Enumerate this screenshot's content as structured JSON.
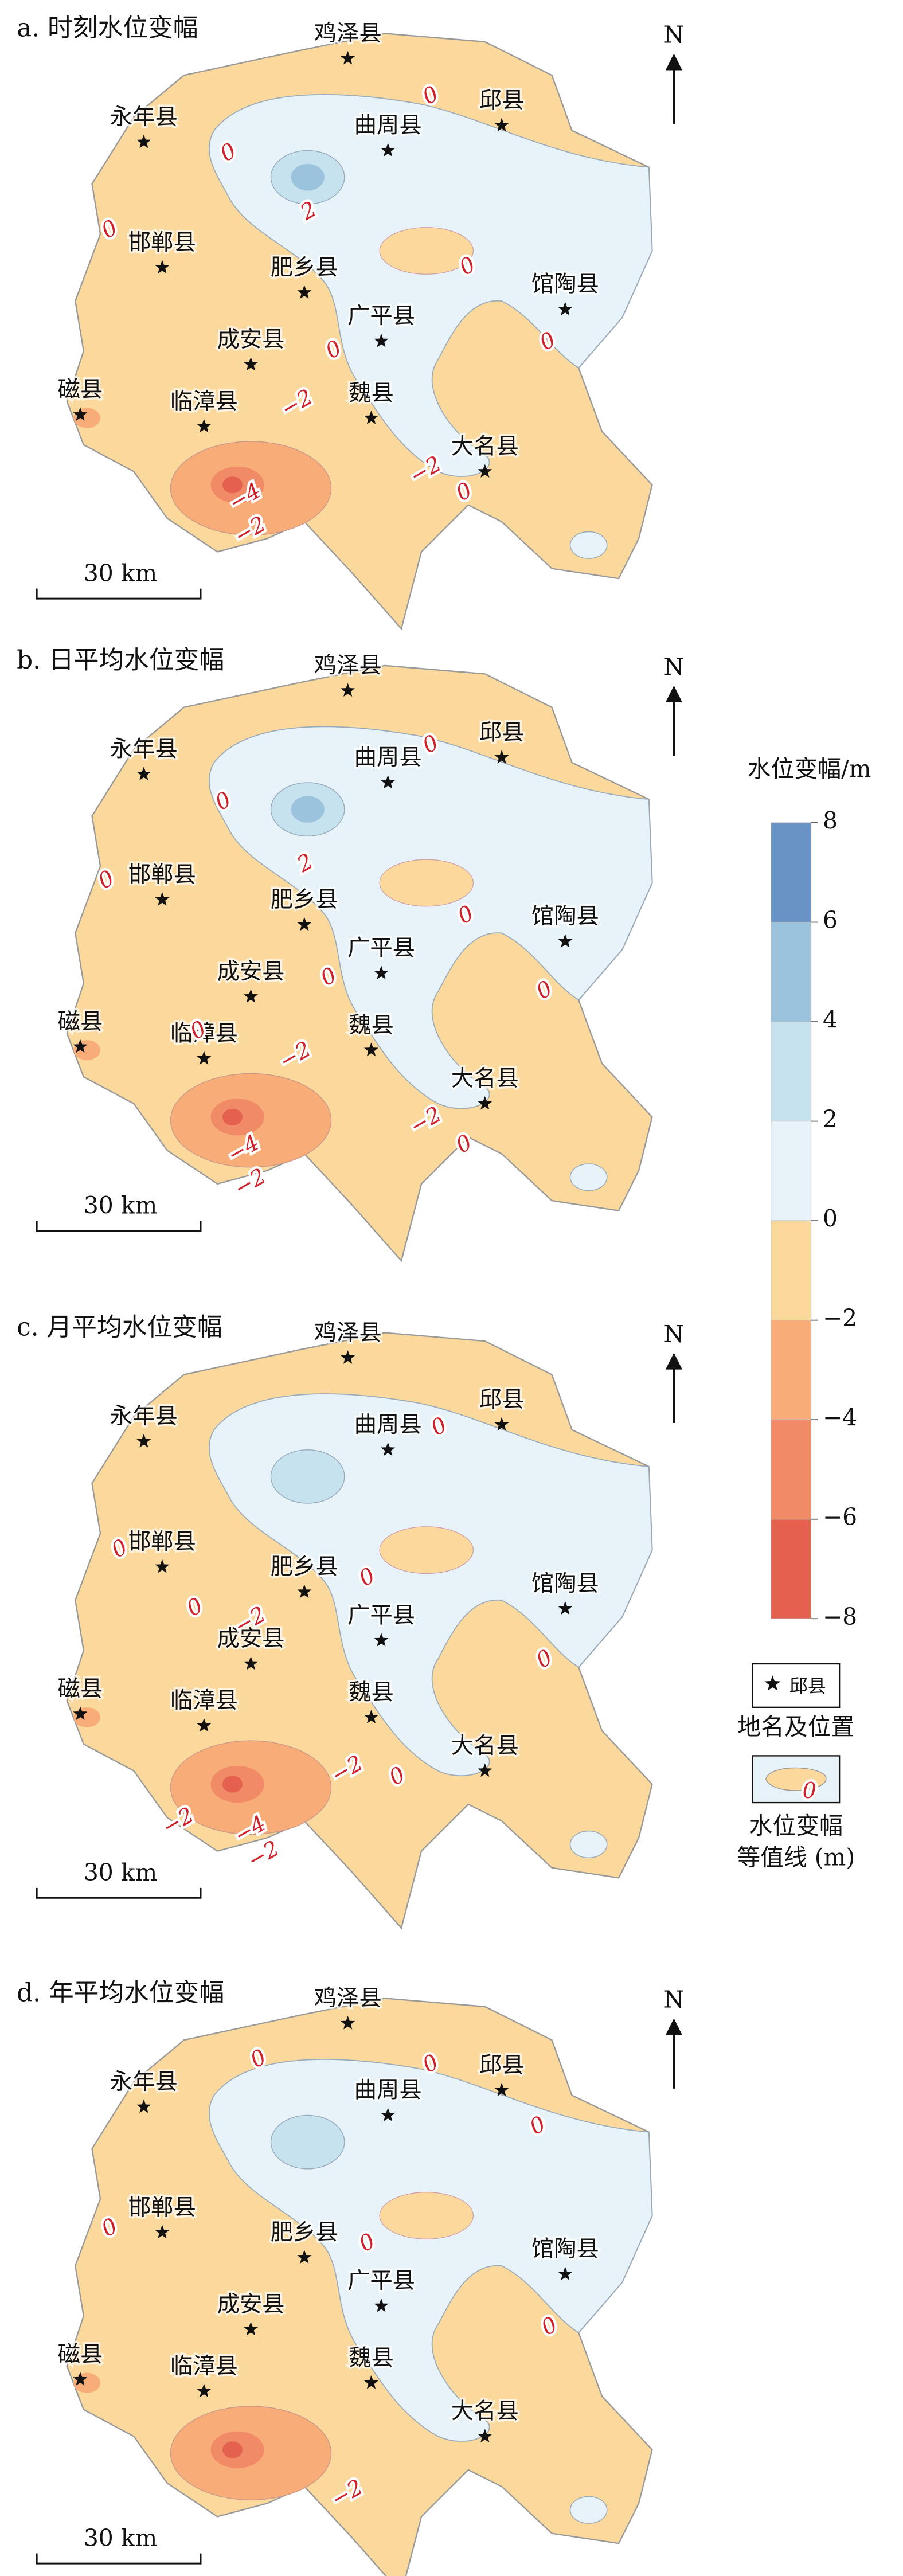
{
  "panels": [
    {
      "title": "a. 时刻水位变幅",
      "contour_labels": [
        "0",
        "0",
        "2",
        "0",
        "0",
        "0",
        "0",
        "−2",
        "−4",
        "−2",
        "−2",
        "0"
      ]
    },
    {
      "title": "b. 日平均水位变幅",
      "contour_labels": [
        "0",
        "0",
        "2",
        "0",
        "0",
        "0",
        "0",
        "0",
        "−2",
        "−4",
        "−2",
        "−2",
        "0"
      ]
    },
    {
      "title": "c. 月平均水位变幅",
      "contour_labels": [
        "0",
        "0",
        "0",
        "−2",
        "0",
        "0",
        "−2",
        "0",
        "−2",
        "−4",
        "−2"
      ]
    },
    {
      "title": "d. 年平均水位变幅",
      "contour_labels": [
        "0",
        "0",
        "0",
        "0",
        "0",
        "0",
        "−2"
      ]
    }
  ],
  "counties": [
    "鸡泽县",
    "邱县",
    "永年县",
    "曲周县",
    "邯郸县",
    "肥乡县",
    "馆陶县",
    "广平县",
    "成安县",
    "磁县",
    "临漳县",
    "魏县",
    "大名县"
  ],
  "north": "N",
  "scale": "30 km",
  "legend": {
    "title": "水位变幅/m",
    "ticks": [
      8,
      6,
      4,
      2,
      0,
      {
        "value": -2,
        "label": "−2"
      },
      {
        "value": -4,
        "label": "−4"
      },
      {
        "value": -6,
        "label": "−6"
      },
      {
        "value": -8,
        "label": "−8"
      }
    ],
    "colors": [
      "#6a93c5",
      "#9cc3dd",
      "#c6e2ee",
      "#e8f3f9",
      "#fbd89b",
      "#f8ad78",
      "#f18a66",
      "#e4614f"
    ],
    "symbol_label": "邱县",
    "place_caption": "地名及位置",
    "contour_sample": "0",
    "contour_caption": [
      "水位变幅",
      "等值线 (m)"
    ]
  }
}
